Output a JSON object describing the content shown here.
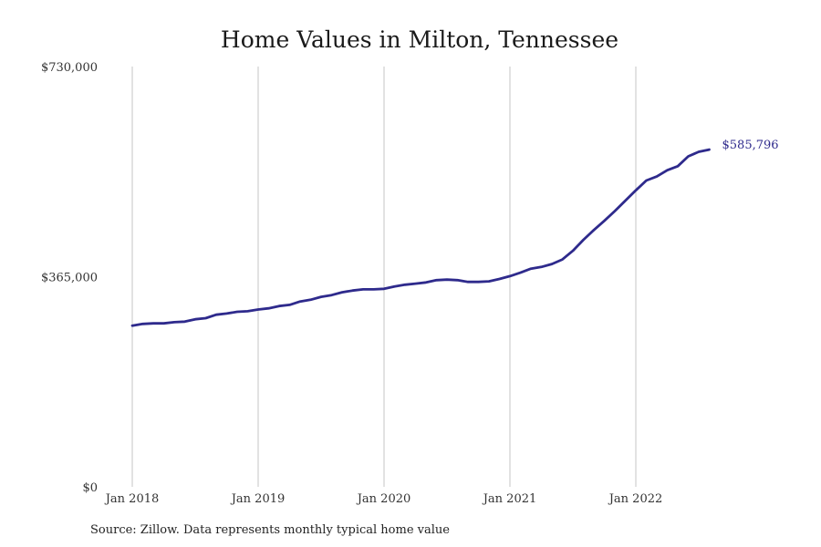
{
  "chart_data": {
    "type": "line",
    "title": "Home Values in Milton, Tennessee",
    "xlabel": "",
    "ylabel": "",
    "ylim": [
      0,
      730000
    ],
    "y_ticks": [
      0,
      365000,
      730000
    ],
    "y_tick_labels": [
      "$0",
      "$365,000",
      "$730,000"
    ],
    "x_ticks": [
      "2018-01",
      "2019-01",
      "2020-01",
      "2021-01",
      "2022-01"
    ],
    "x_tick_labels": [
      "Jan 2018",
      "Jan 2019",
      "Jan 2020",
      "Jan 2021",
      "Jan 2022"
    ],
    "grid": "vertical",
    "series": [
      {
        "color": "#2e2a8c",
        "x": [
          "2018-01",
          "2018-02",
          "2018-03",
          "2018-04",
          "2018-05",
          "2018-06",
          "2018-07",
          "2018-08",
          "2018-09",
          "2018-10",
          "2018-11",
          "2018-12",
          "2019-01",
          "2019-02",
          "2019-03",
          "2019-04",
          "2019-05",
          "2019-06",
          "2019-07",
          "2019-08",
          "2019-09",
          "2019-10",
          "2019-11",
          "2019-12",
          "2020-01",
          "2020-02",
          "2020-03",
          "2020-04",
          "2020-05",
          "2020-06",
          "2020-07",
          "2020-08",
          "2020-09",
          "2020-10",
          "2020-11",
          "2020-12",
          "2021-01",
          "2021-02",
          "2021-03",
          "2021-04",
          "2021-05",
          "2021-06",
          "2021-07",
          "2021-08",
          "2021-09",
          "2021-10",
          "2021-11",
          "2021-12",
          "2022-01",
          "2022-02",
          "2022-03",
          "2022-04",
          "2022-05",
          "2022-06",
          "2022-07",
          "2022-08"
        ],
        "values": [
          280000,
          283000,
          284000,
          284000,
          286000,
          287000,
          291000,
          293000,
          299000,
          301000,
          304000,
          305000,
          308000,
          310000,
          314000,
          316000,
          322000,
          325000,
          330000,
          333000,
          338000,
          341000,
          343000,
          343000,
          344000,
          348000,
          351000,
          353000,
          355000,
          359000,
          360000,
          359000,
          356000,
          356000,
          357000,
          361000,
          366000,
          372000,
          379000,
          382000,
          387000,
          395000,
          410000,
          429000,
          446000,
          462000,
          479000,
          497000,
          515000,
          532000,
          539000,
          550000,
          557000,
          574000,
          582000,
          585796
        ]
      }
    ],
    "end_label": "$585,796"
  },
  "source_note": "Source: Zillow. Data represents monthly typical home value"
}
